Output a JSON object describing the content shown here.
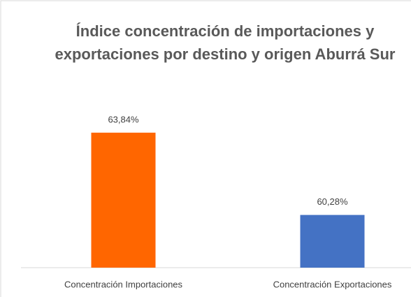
{
  "chart_data": {
    "type": "bar",
    "title": "Índice concentración de importaciones y exportaciones por destino y origen Aburrá Sur",
    "categories": [
      "Concentración Importaciones",
      "Concentración Exportaciones"
    ],
    "values": [
      63.84,
      60.28
    ],
    "value_labels": [
      "63,84%",
      "60,28%"
    ],
    "colors": [
      "#ff6600",
      "#4472c4"
    ],
    "ylim": [
      58,
      64.5
    ]
  }
}
